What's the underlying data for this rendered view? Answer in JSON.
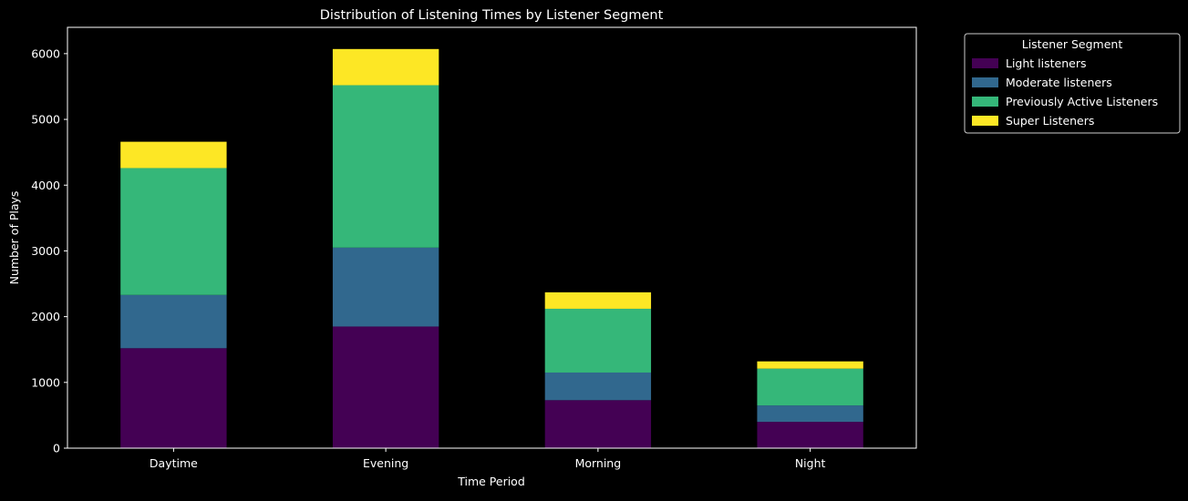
{
  "chart_data": {
    "type": "bar",
    "stacked": true,
    "title": "Distribution of Listening Times by Listener Segment",
    "xlabel": "Time Period",
    "ylabel": "Number of Plays",
    "categories": [
      "Daytime",
      "Evening",
      "Morning",
      "Night"
    ],
    "series": [
      {
        "name": "Light listeners",
        "color": "#440154",
        "values": [
          1520,
          1850,
          730,
          400
        ]
      },
      {
        "name": "Moderate listeners",
        "color": "#31688e",
        "values": [
          810,
          1200,
          420,
          250
        ]
      },
      {
        "name": "Previously Active Listeners",
        "color": "#35b779",
        "values": [
          1930,
          2470,
          970,
          560
        ]
      },
      {
        "name": "Super Listeners",
        "color": "#fde725",
        "values": [
          400,
          550,
          250,
          110
        ]
      }
    ],
    "ylim": [
      0,
      6400
    ],
    "yticks": [
      0,
      1000,
      2000,
      3000,
      4000,
      5000,
      6000
    ],
    "grid": false,
    "legend": {
      "title": "Listener Segment",
      "placement": "outside-top-right"
    },
    "background_color": "#000000",
    "foreground_color": "#ffffff"
  }
}
